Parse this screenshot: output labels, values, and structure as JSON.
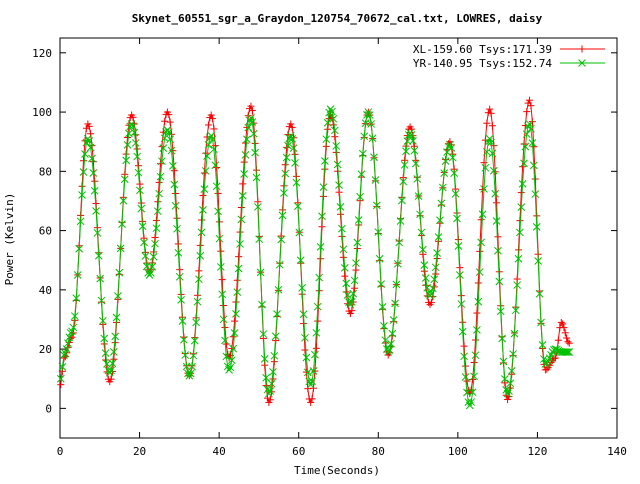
{
  "chart_data": {
    "type": "line",
    "title": "Skynet_60551_sgr_a_Graydon_120754_70672_cal.txt, LOWRES, daisy",
    "xlabel": "Time(Seconds)",
    "ylabel": "Power (Kelvin)",
    "xlim": [
      0,
      140
    ],
    "ylim": [
      -10,
      125
    ],
    "x_ticks": [
      "0",
      "20",
      "40",
      "60",
      "80",
      "100",
      "120",
      "140"
    ],
    "y_ticks": [
      "0",
      "20",
      "40",
      "60",
      "80",
      "100",
      "120"
    ],
    "grid": false,
    "legend_position": "top-right",
    "series": [
      {
        "name": "XL-159.60 Tsys:171.39",
        "color": "#ff0000",
        "marker": "plus",
        "peaks": [
          [
            0.2,
            8
          ],
          [
            1,
            17
          ],
          [
            3,
            24
          ],
          [
            7,
            96
          ],
          [
            12.5,
            9
          ],
          [
            18,
            99
          ],
          [
            22.5,
            46
          ],
          [
            27,
            100
          ],
          [
            32.5,
            11
          ],
          [
            38,
            99
          ],
          [
            42.5,
            17
          ],
          [
            48,
            102
          ],
          [
            52.5,
            2
          ],
          [
            58,
            96
          ],
          [
            63,
            2
          ],
          [
            68,
            99
          ],
          [
            73,
            32
          ],
          [
            77.5,
            100
          ],
          [
            82.5,
            18
          ],
          [
            88,
            95
          ],
          [
            93,
            35
          ],
          [
            98,
            90
          ],
          [
            103,
            5
          ],
          [
            108,
            101
          ],
          [
            112.5,
            3
          ],
          [
            118,
            104
          ],
          [
            122,
            13
          ],
          [
            124.5,
            17
          ],
          [
            126,
            29
          ],
          [
            128,
            22
          ]
        ]
      },
      {
        "name": "YR-140.95 Tsys:152.74",
        "color": "#00c000",
        "marker": "cross",
        "peaks": [
          [
            0.2,
            10
          ],
          [
            1,
            18
          ],
          [
            3,
            26
          ],
          [
            7,
            91
          ],
          [
            12.5,
            12
          ],
          [
            18,
            96
          ],
          [
            22.5,
            45
          ],
          [
            27,
            94
          ],
          [
            32.5,
            11
          ],
          [
            38,
            92
          ],
          [
            42.5,
            13
          ],
          [
            48,
            98
          ],
          [
            52.5,
            5
          ],
          [
            58,
            92
          ],
          [
            63,
            8
          ],
          [
            68,
            101
          ],
          [
            73,
            35
          ],
          [
            77.5,
            100
          ],
          [
            82.5,
            19
          ],
          [
            88,
            93
          ],
          [
            93,
            38
          ],
          [
            98,
            89
          ],
          [
            103,
            1
          ],
          [
            108,
            91
          ],
          [
            112.5,
            5
          ],
          [
            118,
            96
          ],
          [
            122,
            15
          ],
          [
            124.5,
            20
          ],
          [
            126,
            19
          ],
          [
            128,
            19
          ]
        ]
      }
    ]
  }
}
